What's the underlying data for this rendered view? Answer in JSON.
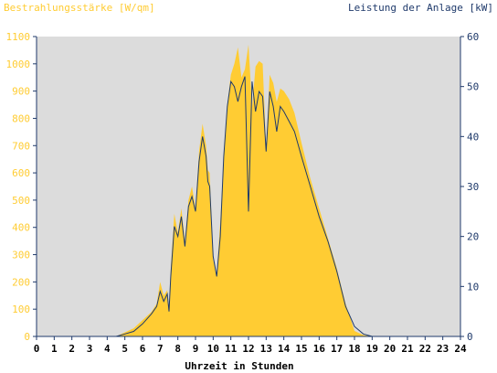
{
  "chart_data": {
    "type": "area",
    "title_left": "Bestrahlungsstärke [W/qm]",
    "title_right": "Leistung der Anlage [kW]",
    "xlabel": "Uhrzeit in Stunden",
    "x_ticks": [
      "0",
      "1",
      "2",
      "3",
      "4",
      "5",
      "6",
      "7",
      "8",
      "9",
      "10",
      "11",
      "12",
      "13",
      "14",
      "15",
      "16",
      "17",
      "18",
      "19",
      "20",
      "21",
      "22",
      "23",
      "24"
    ],
    "y_left_ticks": [
      "0",
      "100",
      "200",
      "300",
      "400",
      "500",
      "600",
      "700",
      "800",
      "900",
      "1000",
      "1100"
    ],
    "y_right_ticks": [
      "0",
      "10",
      "20",
      "30",
      "40",
      "50",
      "60"
    ],
    "xlim": [
      0,
      24
    ],
    "ylim_left": [
      0,
      1100
    ],
    "ylim_right": [
      0,
      60
    ],
    "grid": false,
    "colors": {
      "plot_background": "#dcdcdc",
      "irradiance_fill": "#ffcc33",
      "power_line": "#1f3a6b",
      "left_axis_labels": "#ffcc33",
      "right_axis_labels": "#1f3a6b",
      "axis": "#1f3a6b"
    },
    "series": [
      {
        "name": "Bestrahlungsstärke [W/qm]",
        "axis": "left",
        "x": [
          0,
          4.5,
          5,
          5.5,
          6,
          6.5,
          6.8,
          7.0,
          7.2,
          7.4,
          7.5,
          7.6,
          7.8,
          8.0,
          8.2,
          8.4,
          8.6,
          8.8,
          9.0,
          9.2,
          9.4,
          9.6,
          9.7,
          9.8,
          10.0,
          10.2,
          10.4,
          10.6,
          10.8,
          11.0,
          11.2,
          11.4,
          11.6,
          11.8,
          12.0,
          12.2,
          12.4,
          12.6,
          12.8,
          13.0,
          13.2,
          13.4,
          13.6,
          13.8,
          14.0,
          14.3,
          14.6,
          15.0,
          15.5,
          16.0,
          16.5,
          17.0,
          17.5,
          18.0,
          18.5,
          19.0,
          19.5,
          20.0,
          20.5,
          21.0,
          24.0
        ],
        "values": [
          0,
          0,
          15,
          30,
          60,
          90,
          120,
          200,
          150,
          170,
          100,
          250,
          450,
          380,
          470,
          350,
          500,
          550,
          470,
          680,
          780,
          700,
          610,
          600,
          280,
          230,
          420,
          650,
          850,
          960,
          1000,
          1060,
          950,
          980,
          1070,
          840,
          990,
          1010,
          1000,
          690,
          960,
          930,
          860,
          910,
          900,
          870,
          820,
          710,
          580,
          470,
          360,
          250,
          120,
          20,
          5,
          0,
          0,
          0,
          0,
          0,
          0
        ]
      },
      {
        "name": "Leistung der Anlage [kW]",
        "axis": "right",
        "x": [
          0,
          4.5,
          5,
          5.5,
          6,
          6.5,
          6.8,
          7.0,
          7.2,
          7.4,
          7.5,
          7.6,
          7.8,
          8.0,
          8.2,
          8.4,
          8.6,
          8.8,
          9.0,
          9.2,
          9.4,
          9.6,
          9.7,
          9.8,
          10.0,
          10.2,
          10.4,
          10.6,
          10.8,
          11.0,
          11.2,
          11.4,
          11.6,
          11.8,
          12.0,
          12.2,
          12.4,
          12.6,
          12.8,
          13.0,
          13.2,
          13.4,
          13.6,
          13.8,
          14.0,
          14.3,
          14.6,
          15.0,
          15.5,
          16.0,
          16.5,
          17.0,
          17.5,
          18.0,
          18.5,
          19.0,
          19.5,
          20.0,
          20.5,
          21.0,
          24.0
        ],
        "values": [
          0,
          0,
          0.5,
          1,
          2.5,
          4.5,
          6,
          9,
          7,
          8.5,
          5,
          12,
          22,
          20,
          24,
          18,
          26,
          28,
          25,
          35,
          40,
          36,
          31,
          30,
          16,
          12,
          20,
          36,
          46,
          51,
          50,
          47,
          50,
          52,
          25,
          51,
          45,
          49,
          48,
          37,
          49,
          46,
          41,
          46,
          45,
          43,
          41,
          36,
          30,
          24,
          19,
          13,
          6,
          2,
          0.5,
          0,
          0,
          0,
          0,
          0,
          0
        ]
      }
    ]
  }
}
